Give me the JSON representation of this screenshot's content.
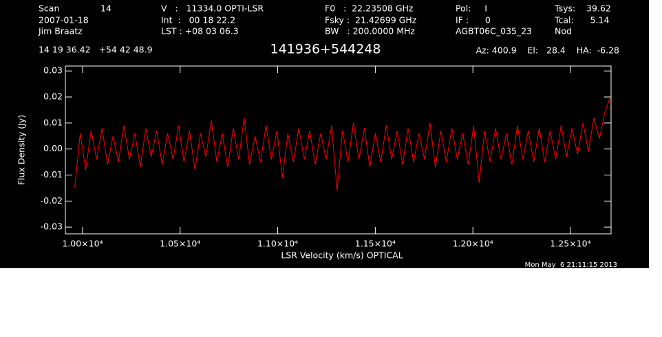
{
  "header": {
    "scan_label": "Scan",
    "scan": "14",
    "date": "2007-01-18",
    "observer": "Jim Braatz",
    "velocity": "V   :   11334.0 OPTI-LSR",
    "integration": "Int  :   00 18 22.2",
    "lst": "LST : +08 03 06.3",
    "f0": "F0   :  22.23508 GHz",
    "fsky": "Fsky :  21.42699 GHz",
    "bw": "BW   : 200.0000 MHz",
    "pol": "Pol:     I",
    "if": "IF :      0",
    "project": "AGBT06C_035_23",
    "tsys": "Tsys:    39.62",
    "tcal": "Tcal:      5.14",
    "mode": "Nod",
    "coords": "14 19 36.42   +54 42 48.9",
    "pointing": "Az: 400.9    El:   28.4    HA:  -6.28",
    "timestamp": "Mon May  6 21:11:15 2013"
  },
  "chart_data": {
    "type": "line",
    "title": "141936+544248",
    "x_label": "LSR Velocity (km/s) OPTICAL",
    "y_label": "Flux Density (Jy)",
    "color": "#ff0000",
    "x": [
      9960,
      9988,
      10016,
      10044,
      10072,
      10100,
      10128,
      10156,
      10184,
      10212,
      10240,
      10268,
      10296,
      10324,
      10352,
      10380,
      10408,
      10436,
      10464,
      10492,
      10520,
      10548,
      10576,
      10604,
      10632,
      10660,
      10688,
      10716,
      10744,
      10772,
      10800,
      10828,
      10856,
      10884,
      10912,
      10940,
      10968,
      10996,
      11024,
      11052,
      11080,
      11108,
      11136,
      11164,
      11192,
      11220,
      11248,
      11276,
      11304,
      11332,
      11360,
      11388,
      11416,
      11444,
      11472,
      11500,
      11528,
      11556,
      11584,
      11612,
      11640,
      11668,
      11696,
      11724,
      11752,
      11780,
      11808,
      11836,
      11864,
      11892,
      11920,
      11948,
      11976,
      12004,
      12032,
      12060,
      12088,
      12116,
      12144,
      12172,
      12200,
      12228,
      12256,
      12284,
      12312,
      12340,
      12368,
      12396,
      12424,
      12452,
      12480,
      12508,
      12536,
      12564,
      12592,
      12620,
      12648,
      12676,
      12704
    ],
    "values": [
      -0.015,
      0.006,
      -0.008,
      0.007,
      -0.004,
      0.008,
      -0.006,
      0.005,
      -0.005,
      0.009,
      -0.004,
      0.006,
      -0.007,
      0.008,
      -0.003,
      0.007,
      -0.006,
      0.006,
      -0.004,
      0.009,
      -0.005,
      0.007,
      -0.008,
      0.006,
      -0.003,
      0.011,
      -0.005,
      0.006,
      -0.007,
      0.008,
      -0.004,
      0.012,
      -0.006,
      0.005,
      -0.005,
      0.009,
      -0.004,
      0.007,
      -0.011,
      0.006,
      -0.005,
      0.008,
      -0.004,
      0.007,
      -0.006,
      0.006,
      -0.004,
      0.009,
      -0.016,
      0.007,
      -0.005,
      0.01,
      -0.004,
      0.008,
      -0.007,
      0.006,
      -0.005,
      0.009,
      -0.004,
      0.007,
      -0.006,
      0.008,
      -0.005,
      0.006,
      -0.004,
      0.01,
      -0.007,
      0.007,
      -0.005,
      0.008,
      -0.004,
      0.006,
      -0.006,
      0.009,
      -0.013,
      0.007,
      -0.005,
      0.008,
      -0.004,
      0.006,
      -0.006,
      0.009,
      -0.004,
      0.007,
      -0.005,
      0.008,
      -0.005,
      0.007,
      -0.004,
      0.009,
      -0.003,
      0.008,
      -0.002,
      0.01,
      -0.001,
      0.012,
      0.004,
      0.014,
      0.02
    ],
    "xlim": [
      9912,
      12708
    ],
    "ylim": [
      -0.0326,
      0.0319
    ],
    "xticks": [
      {
        "value": 10000,
        "label": "1.00×10⁴"
      },
      {
        "value": 10500,
        "label": "1.05×10⁴"
      },
      {
        "value": 11000,
        "label": "1.10×10⁴"
      },
      {
        "value": 11500,
        "label": "1.15×10⁴"
      },
      {
        "value": 12000,
        "label": "1.20×10⁴"
      },
      {
        "value": 12500,
        "label": "1.25×10⁴"
      }
    ],
    "yticks": [
      -0.03,
      -0.02,
      -0.01,
      {
        "value": 0,
        "label": "0.00"
      },
      0.01,
      0.02,
      0.03
    ]
  }
}
